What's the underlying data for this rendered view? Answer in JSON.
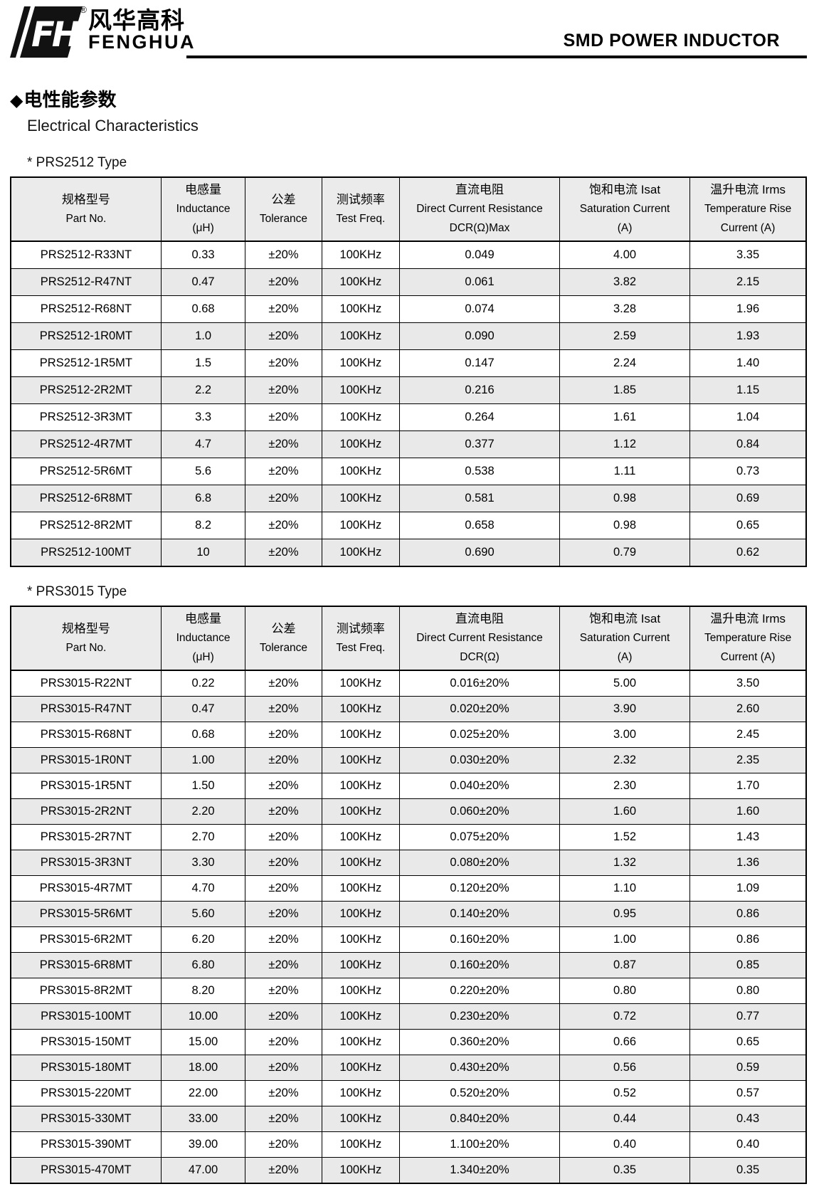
{
  "header": {
    "logo": {
      "monogram": "FH",
      "brand_cn": "风华高科",
      "brand_en": "FENGHUA",
      "registered_mark": "®"
    },
    "doc_title": "SMD POWER INDUCTOR"
  },
  "section": {
    "bullet": "◆",
    "title_cn": "电性能参数",
    "title_en": "Electrical Characteristics"
  },
  "colors": {
    "table_header_bg": "#ebebeb",
    "row_alt_bg": "#e9e9e9",
    "border": "#000000"
  },
  "tables": [
    {
      "caption": "* PRS2512 Type",
      "columns": [
        {
          "lines": [
            "规格型号",
            "Part No."
          ]
        },
        {
          "lines": [
            "电感量",
            "Inductance",
            "(μH)"
          ]
        },
        {
          "lines": [
            "公差",
            "Tolerance"
          ]
        },
        {
          "lines": [
            "测试频率",
            "Test Freq."
          ]
        },
        {
          "lines": [
            "直流电阻",
            "Direct Current Resistance",
            "DCR(Ω)Max"
          ]
        },
        {
          "lines": [
            "饱和电流 Isat",
            "Saturation Current",
            "(A)"
          ]
        },
        {
          "lines": [
            "温升电流 Irms",
            "Temperature Rise",
            "Current (A)"
          ]
        }
      ],
      "rows": [
        [
          "PRS2512-R33NT",
          "0.33",
          "±20%",
          "100KHz",
          "0.049",
          "4.00",
          "3.35"
        ],
        [
          "PRS2512-R47NT",
          "0.47",
          "±20%",
          "100KHz",
          "0.061",
          "3.82",
          "2.15"
        ],
        [
          "PRS2512-R68NT",
          "0.68",
          "±20%",
          "100KHz",
          "0.074",
          "3.28",
          "1.96"
        ],
        [
          "PRS2512-1R0MT",
          "1.0",
          "±20%",
          "100KHz",
          "0.090",
          "2.59",
          "1.93"
        ],
        [
          "PRS2512-1R5MT",
          "1.5",
          "±20%",
          "100KHz",
          "0.147",
          "2.24",
          "1.40"
        ],
        [
          "PRS2512-2R2MT",
          "2.2",
          "±20%",
          "100KHz",
          "0.216",
          "1.85",
          "1.15"
        ],
        [
          "PRS2512-3R3MT",
          "3.3",
          "±20%",
          "100KHz",
          "0.264",
          "1.61",
          "1.04"
        ],
        [
          "PRS2512-4R7MT",
          "4.7",
          "±20%",
          "100KHz",
          "0.377",
          "1.12",
          "0.84"
        ],
        [
          "PRS2512-5R6MT",
          "5.6",
          "±20%",
          "100KHz",
          "0.538",
          "1.11",
          "0.73"
        ],
        [
          "PRS2512-6R8MT",
          "6.8",
          "±20%",
          "100KHz",
          "0.581",
          "0.98",
          "0.69"
        ],
        [
          "PRS2512-8R2MT",
          "8.2",
          "±20%",
          "100KHz",
          "0.658",
          "0.98",
          "0.65"
        ],
        [
          "PRS2512-100MT",
          "10",
          "±20%",
          "100KHz",
          "0.690",
          "0.79",
          "0.62"
        ]
      ]
    },
    {
      "caption": "* PRS3015 Type",
      "columns": [
        {
          "lines": [
            "规格型号",
            "Part No."
          ]
        },
        {
          "lines": [
            "电感量",
            "Inductance",
            "(μH)"
          ]
        },
        {
          "lines": [
            "公差",
            "Tolerance"
          ]
        },
        {
          "lines": [
            "测试频率",
            "Test Freq."
          ]
        },
        {
          "lines": [
            "直流电阻",
            "Direct Current Resistance",
            "DCR(Ω)"
          ]
        },
        {
          "lines": [
            "饱和电流 Isat",
            "Saturation Current",
            "(A)"
          ]
        },
        {
          "lines": [
            "温升电流 Irms",
            "Temperature Rise",
            "Current (A)"
          ]
        }
      ],
      "rows": [
        [
          "PRS3015-R22NT",
          "0.22",
          "±20%",
          "100KHz",
          "0.016±20%",
          "5.00",
          "3.50"
        ],
        [
          "PRS3015-R47NT",
          "0.47",
          "±20%",
          "100KHz",
          "0.020±20%",
          "3.90",
          "2.60"
        ],
        [
          "PRS3015-R68NT",
          "0.68",
          "±20%",
          "100KHz",
          "0.025±20%",
          "3.00",
          "2.45"
        ],
        [
          "PRS3015-1R0NT",
          "1.00",
          "±20%",
          "100KHz",
          "0.030±20%",
          "2.32",
          "2.35"
        ],
        [
          "PRS3015-1R5NT",
          "1.50",
          "±20%",
          "100KHz",
          "0.040±20%",
          "2.30",
          "1.70"
        ],
        [
          "PRS3015-2R2NT",
          "2.20",
          "±20%",
          "100KHz",
          "0.060±20%",
          "1.60",
          "1.60"
        ],
        [
          "PRS3015-2R7NT",
          "2.70",
          "±20%",
          "100KHz",
          "0.075±20%",
          "1.52",
          "1.43"
        ],
        [
          "PRS3015-3R3NT",
          "3.30",
          "±20%",
          "100KHz",
          "0.080±20%",
          "1.32",
          "1.36"
        ],
        [
          "PRS3015-4R7MT",
          "4.70",
          "±20%",
          "100KHz",
          "0.120±20%",
          "1.10",
          "1.09"
        ],
        [
          "PRS3015-5R6MT",
          "5.60",
          "±20%",
          "100KHz",
          "0.140±20%",
          "0.95",
          "0.86"
        ],
        [
          "PRS3015-6R2MT",
          "6.20",
          "±20%",
          "100KHz",
          "0.160±20%",
          "1.00",
          "0.86"
        ],
        [
          "PRS3015-6R8MT",
          "6.80",
          "±20%",
          "100KHz",
          "0.160±20%",
          "0.87",
          "0.85"
        ],
        [
          "PRS3015-8R2MT",
          "8.20",
          "±20%",
          "100KHz",
          "0.220±20%",
          "0.80",
          "0.80"
        ],
        [
          "PRS3015-100MT",
          "10.00",
          "±20%",
          "100KHz",
          "0.230±20%",
          "0.72",
          "0.77"
        ],
        [
          "PRS3015-150MT",
          "15.00",
          "±20%",
          "100KHz",
          "0.360±20%",
          "0.66",
          "0.65"
        ],
        [
          "PRS3015-180MT",
          "18.00",
          "±20%",
          "100KHz",
          "0.430±20%",
          "0.56",
          "0.59"
        ],
        [
          "PRS3015-220MT",
          "22.00",
          "±20%",
          "100KHz",
          "0.520±20%",
          "0.52",
          "0.57"
        ],
        [
          "PRS3015-330MT",
          "33.00",
          "±20%",
          "100KHz",
          "0.840±20%",
          "0.44",
          "0.43"
        ],
        [
          "PRS3015-390MT",
          "39.00",
          "±20%",
          "100KHz",
          "1.100±20%",
          "0.40",
          "0.40"
        ],
        [
          "PRS3015-470MT",
          "47.00",
          "±20%",
          "100KHz",
          "1.340±20%",
          "0.35",
          "0.35"
        ]
      ]
    }
  ]
}
